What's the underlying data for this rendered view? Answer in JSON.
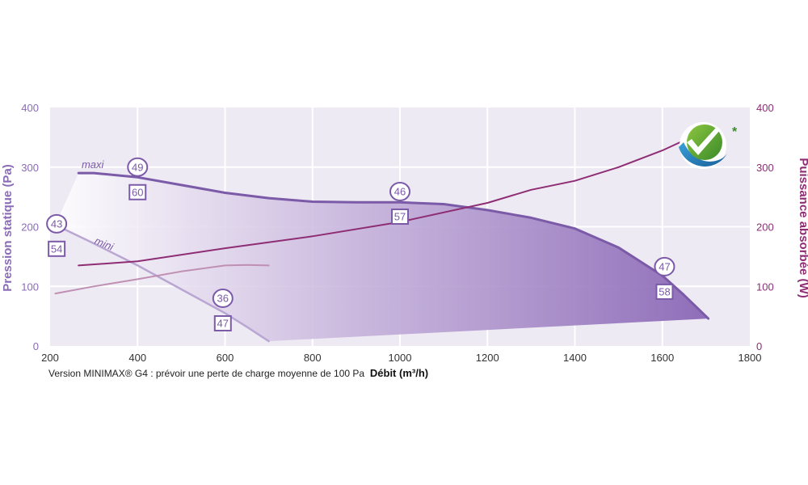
{
  "chart_data": {
    "type": "line",
    "xlabel": "Débit (m³/h)",
    "ylabel_left": "Pression statique (Pa)",
    "ylabel_right": "Puissance absorbée (W)",
    "note": "Version MINIMAX® G4 : prévoir une perte de charge moyenne de 100 Pa",
    "badge_mark": "*",
    "xlim": [
      200,
      1800
    ],
    "ylim_left": [
      0,
      400
    ],
    "ylim_right": [
      0,
      400
    ],
    "x_ticks": [
      200,
      400,
      600,
      800,
      1000,
      1200,
      1400,
      1600,
      1800
    ],
    "y_ticks": [
      0,
      100,
      200,
      300,
      400
    ],
    "grid": true,
    "colors": {
      "pressure": "#7b5aa8",
      "power": "#8e2d74",
      "axis_left": "#8a6bb5",
      "axis_right": "#8e2d74",
      "plot_bg": "#eeeaf3",
      "grid": "#ffffff"
    },
    "series": [
      {
        "name": "maxi",
        "axis": "left",
        "x": [
          265,
          300,
          400,
          500,
          600,
          700,
          800,
          900,
          1000,
          1100,
          1200,
          1300,
          1400,
          1500,
          1600,
          1650,
          1705
        ],
        "y": [
          290,
          290,
          283,
          270,
          257,
          248,
          242,
          241,
          241,
          238,
          228,
          215,
          197,
          165,
          118,
          85,
          46
        ]
      },
      {
        "name": "mini",
        "axis": "left",
        "x": [
          212,
          300,
          400,
          500,
          600,
          650,
          700
        ],
        "y": [
          203,
          172,
          135,
          95,
          55,
          32,
          8
        ]
      },
      {
        "axis": "right",
        "x": [
          265,
          400,
          600,
          800,
          1000,
          1200,
          1300,
          1400,
          1500,
          1600,
          1650
        ],
        "y": [
          135,
          142,
          164,
          184,
          208,
          240,
          262,
          277,
          300,
          328,
          345
        ]
      },
      {
        "axis": "right",
        "x": [
          212,
          300,
          400,
          500,
          600,
          650,
          700
        ],
        "y": [
          88,
          100,
          112,
          125,
          135,
          136,
          135
        ]
      }
    ],
    "annotations": [
      {
        "x": 400,
        "y": 300,
        "circle": "49",
        "box": "60"
      },
      {
        "x": 1000,
        "y": 259,
        "circle": "46",
        "box": "57"
      },
      {
        "x": 1605,
        "y": 133,
        "circle": "47",
        "box": "58"
      },
      {
        "x": 215,
        "y": 205,
        "circle": "43",
        "box": "54"
      },
      {
        "x": 595,
        "y": 80,
        "circle": "36",
        "box": "47"
      }
    ]
  }
}
